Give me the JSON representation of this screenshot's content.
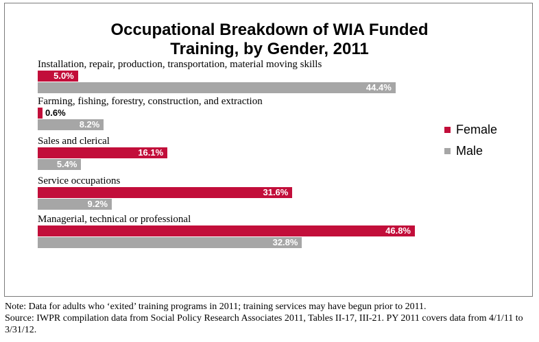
{
  "chart_data": {
    "type": "bar",
    "orientation": "horizontal",
    "title_lines": [
      "Occupational Breakdown of WIA Funded",
      "Training, by Gender, 2011"
    ],
    "categories": [
      "Installation, repair, production, transportation, material moving skills",
      "Farming, fishing, forestry, construction, and extraction",
      "Sales and clerical",
      "Service occupations",
      "Managerial, technical or professional"
    ],
    "series": [
      {
        "name": "Female",
        "color": "#c20e3a",
        "values": [
          5.0,
          0.6,
          16.1,
          31.6,
          46.8
        ],
        "labels": [
          "5.0%",
          "0.6%",
          "16.1%",
          "31.6%",
          "46.8%"
        ]
      },
      {
        "name": "Male",
        "color": "#a6a6a6",
        "values": [
          44.4,
          8.2,
          5.4,
          9.2,
          32.8
        ],
        "labels": [
          "44.4%",
          "8.2%",
          "5.4%",
          "9.2%",
          "32.8%"
        ]
      }
    ],
    "legend_position": "right",
    "grid": false,
    "xlim": [
      0,
      50
    ]
  },
  "notes": {
    "line1": "Note: Data for adults who ‘exited’ training programs in 2011; training services may have begun prior to 2011.",
    "line2": "Source: IWPR compilation data from Social Policy Research Associates 2011, Tables II-17, III-21. PY 2011 covers data from 4/1/11 to 3/31/12."
  }
}
